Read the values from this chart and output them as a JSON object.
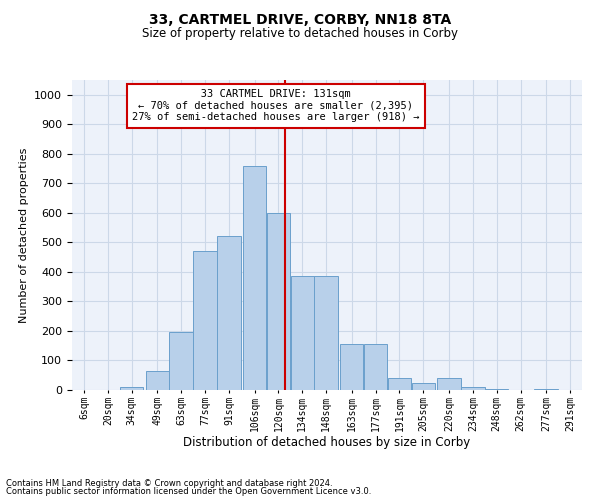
{
  "title": "33, CARTMEL DRIVE, CORBY, NN18 8TA",
  "subtitle": "Size of property relative to detached houses in Corby",
  "xlabel": "Distribution of detached houses by size in Corby",
  "ylabel": "Number of detached properties",
  "footnote1": "Contains HM Land Registry data © Crown copyright and database right 2024.",
  "footnote2": "Contains public sector information licensed under the Open Government Licence v3.0.",
  "annotation_line1": "   33 CARTMEL DRIVE: 131sqm   ",
  "annotation_line2": "← 70% of detached houses are smaller (2,395)",
  "annotation_line3": "27% of semi-detached houses are larger (918) →",
  "bar_labels": [
    "6sqm",
    "20sqm",
    "34sqm",
    "49sqm",
    "63sqm",
    "77sqm",
    "91sqm",
    "106sqm",
    "120sqm",
    "134sqm",
    "148sqm",
    "163sqm",
    "177sqm",
    "191sqm",
    "205sqm",
    "220sqm",
    "234sqm",
    "248sqm",
    "262sqm",
    "277sqm",
    "291sqm"
  ],
  "bar_left_edges": [
    6,
    20,
    34,
    49,
    63,
    77,
    91,
    106,
    120,
    134,
    148,
    163,
    177,
    191,
    205,
    220,
    234,
    248,
    262,
    277,
    291
  ],
  "bin_width": 14,
  "bar_heights": [
    0,
    0,
    10,
    65,
    195,
    470,
    520,
    760,
    600,
    385,
    385,
    155,
    155,
    40,
    25,
    40,
    10,
    5,
    0,
    5,
    0
  ],
  "bar_fill_color": "#b8d0ea",
  "bar_edge_color": "#6aa0cc",
  "grid_color": "#ccd8e8",
  "background_color": "#edf2fa",
  "vline_x": 131,
  "vline_color": "#cc0000",
  "annotation_box_color": "#cc0000",
  "ylim": [
    0,
    1050
  ],
  "yticks": [
    0,
    100,
    200,
    300,
    400,
    500,
    600,
    700,
    800,
    900,
    1000
  ]
}
